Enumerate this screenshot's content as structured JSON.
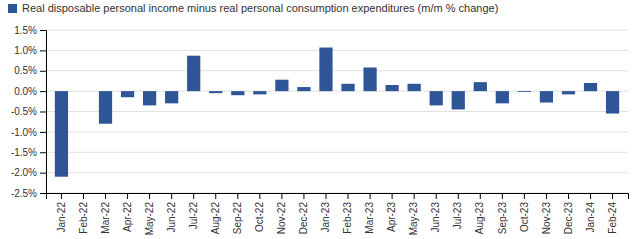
{
  "chart_data": {
    "type": "bar",
    "categories": [
      "Jan-22",
      "Feb-22",
      "Mar-22",
      "Apr-22",
      "May-22",
      "Jun-22",
      "Jul-22",
      "Aug-22",
      "Sep-22",
      "Oct-22",
      "Nov-22",
      "Dec-22",
      "Jan-23",
      "Feb-23",
      "Mar-23",
      "Apr-23",
      "May-23",
      "Jun-23",
      "Jul-23",
      "Aug-23",
      "Sep-23",
      "Oct-23",
      "Nov-23",
      "Dec-23",
      "Jan-24",
      "Feb-24"
    ],
    "series": [
      {
        "name": "Real disposable personal income minus real personal consumption expenditures (m/m % change)",
        "color": "#2E5596",
        "values": [
          -2.1,
          0.0,
          -0.8,
          -0.15,
          -0.35,
          -0.3,
          0.87,
          -0.05,
          -0.1,
          -0.08,
          0.28,
          0.1,
          1.07,
          0.18,
          0.58,
          0.15,
          0.18,
          -0.35,
          -0.45,
          0.22,
          -0.3,
          -0.02,
          -0.28,
          -0.08,
          0.2,
          -0.55
        ]
      }
    ],
    "ylim": [
      -2.5,
      1.5
    ],
    "yticks": [
      {
        "value": -2.5,
        "label": "-2.5%"
      },
      {
        "value": -2.0,
        "label": "-2.0%"
      },
      {
        "value": -1.5,
        "label": "-1.5%"
      },
      {
        "value": -1.0,
        "label": "-1.0%"
      },
      {
        "value": -0.5,
        "label": "-0.5%"
      },
      {
        "value": 0.0,
        "label": "0.0%"
      },
      {
        "value": 0.5,
        "label": "0.5%"
      },
      {
        "value": 1.0,
        "label": "1.0%"
      },
      {
        "value": 1.5,
        "label": "1.5%"
      }
    ],
    "grid": true,
    "legend": "top"
  }
}
